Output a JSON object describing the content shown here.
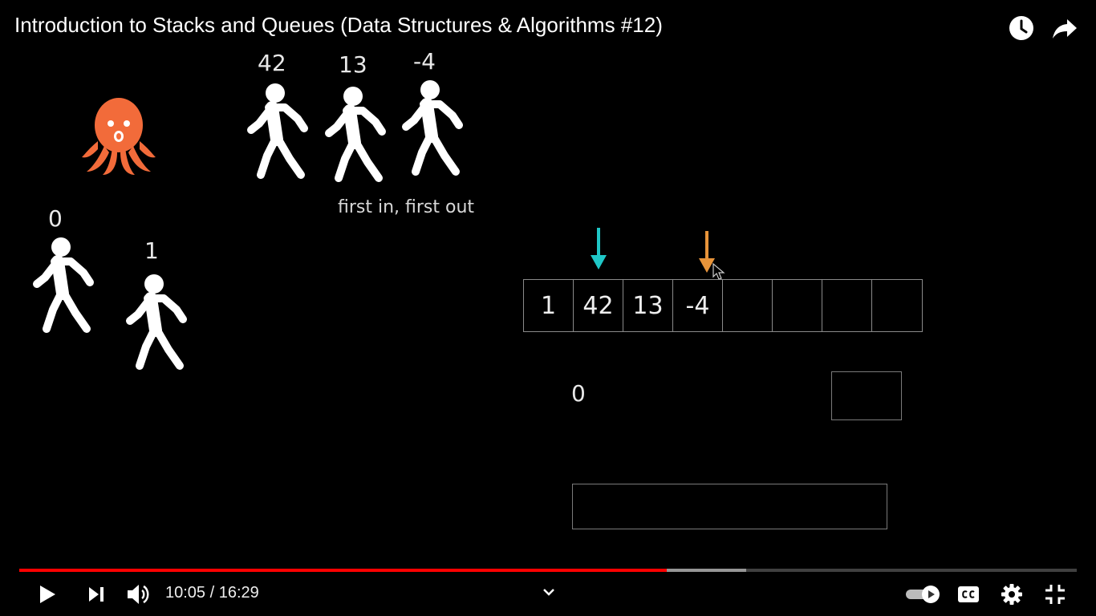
{
  "title": "Introduction to Stacks and Queues (Data Structures & Algorithms #12)",
  "queue_people": [
    {
      "label": "42"
    },
    {
      "label": "13"
    },
    {
      "label": "-4"
    }
  ],
  "caption": "first in, first out",
  "left_people": [
    {
      "label": "0"
    },
    {
      "label": "1"
    }
  ],
  "array_cells": [
    "1",
    "42",
    "13",
    "-4",
    "",
    "",
    "",
    ""
  ],
  "index_value": "0",
  "pointer_colors": {
    "front": "#1fc7c7",
    "back": "#e8943a"
  },
  "octopus_color": "#f26b3a",
  "player": {
    "current_time": "10:05",
    "duration": "16:29",
    "time_text": "10:05 / 16:29",
    "played_fraction": 0.6125,
    "buffered_fraction": 0.6875,
    "progress_color": "#ff0000"
  },
  "icons": {
    "top": [
      "watch-later-icon",
      "share-icon"
    ],
    "controls": [
      "play-icon",
      "next-icon",
      "volume-icon",
      "chevron-down-icon",
      "autoplay-toggle-icon",
      "captions-icon",
      "settings-icon",
      "exit-fullscreen-icon"
    ]
  }
}
